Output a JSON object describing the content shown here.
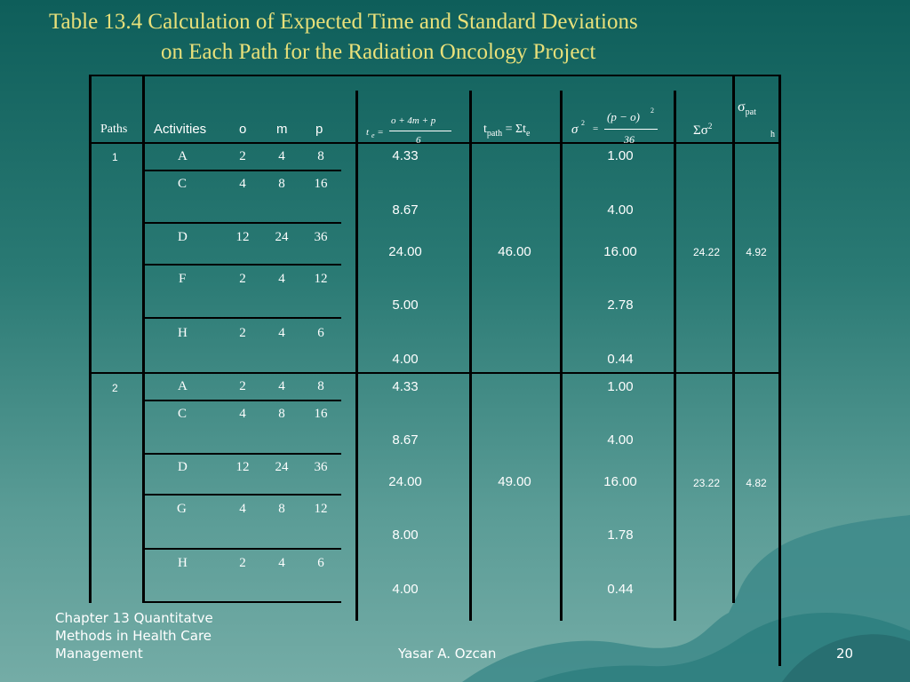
{
  "title": {
    "line1": "Table 13.4 Calculation of Expected Time and Standard Deviations",
    "line2": "on Each Path for the Radiation Oncology Project"
  },
  "header": {
    "paths": "Paths",
    "activities": "Activities",
    "o": "o",
    "m": "m",
    "p": "p",
    "te_lhs": "t",
    "te_sub": "e",
    "te_eq": "=",
    "te_num": "o + 4m + p",
    "te_den": "6",
    "tpath": "t",
    "tpath_sub": "path",
    "tpath_eq": " = Σt",
    "tpath_sub2": "e",
    "sigma2_lhs": "σ",
    "sigma2_sup": "2",
    "sigma2_eq": "=",
    "sigma2_num": "(p − o)",
    "sigma2_num_sup": "2",
    "sigma2_den": "36",
    "sum_sigma2": "Σσ",
    "sum_sigma2_sup": "2",
    "sigma_path": "σ",
    "sigma_path_sub": "pat",
    "sigma_path_sub2": "h"
  },
  "paths": [
    {
      "label": "1",
      "tpath": "46.00",
      "sum_sigma2": "24.22",
      "sigma_path": "4.92",
      "rows": [
        {
          "act": "A",
          "o": "2",
          "m": "4",
          "p": "8",
          "te": "4.33",
          "var": "1.00"
        },
        {
          "act": "C",
          "o": "4",
          "m": "8",
          "p": "16",
          "te": "8.67",
          "var": "4.00"
        },
        {
          "act": "D",
          "o": "12",
          "m": "24",
          "p": "36",
          "te": "24.00",
          "var": "16.00"
        },
        {
          "act": "F",
          "o": "2",
          "m": "4",
          "p": "12",
          "te": "5.00",
          "var": "2.78"
        },
        {
          "act": "H",
          "o": "2",
          "m": "4",
          "p": "6",
          "te": "4.00",
          "var": "0.44"
        }
      ]
    },
    {
      "label": "2",
      "tpath": "49.00",
      "sum_sigma2": "23.22",
      "sigma_path": "4.82",
      "rows": [
        {
          "act": "A",
          "o": "2",
          "m": "4",
          "p": "8",
          "te": "4.33",
          "var": "1.00"
        },
        {
          "act": "C",
          "o": "4",
          "m": "8",
          "p": "16",
          "te": "8.67",
          "var": "4.00"
        },
        {
          "act": "D",
          "o": "12",
          "m": "24",
          "p": "36",
          "te": "24.00",
          "var": "16.00"
        },
        {
          "act": "G",
          "o": "4",
          "m": "8",
          "p": "12",
          "te": "8.00",
          "var": "1.78"
        },
        {
          "act": "H",
          "o": "2",
          "m": "4",
          "p": "6",
          "te": "4.00",
          "var": "0.44"
        }
      ]
    }
  ],
  "footer": {
    "chapter_line1": "Chapter 13  Quantitatve",
    "chapter_line2": "Methods in Health Care",
    "chapter_line3": "Management",
    "author": "Yasar A. Ozcan",
    "page": "20"
  }
}
